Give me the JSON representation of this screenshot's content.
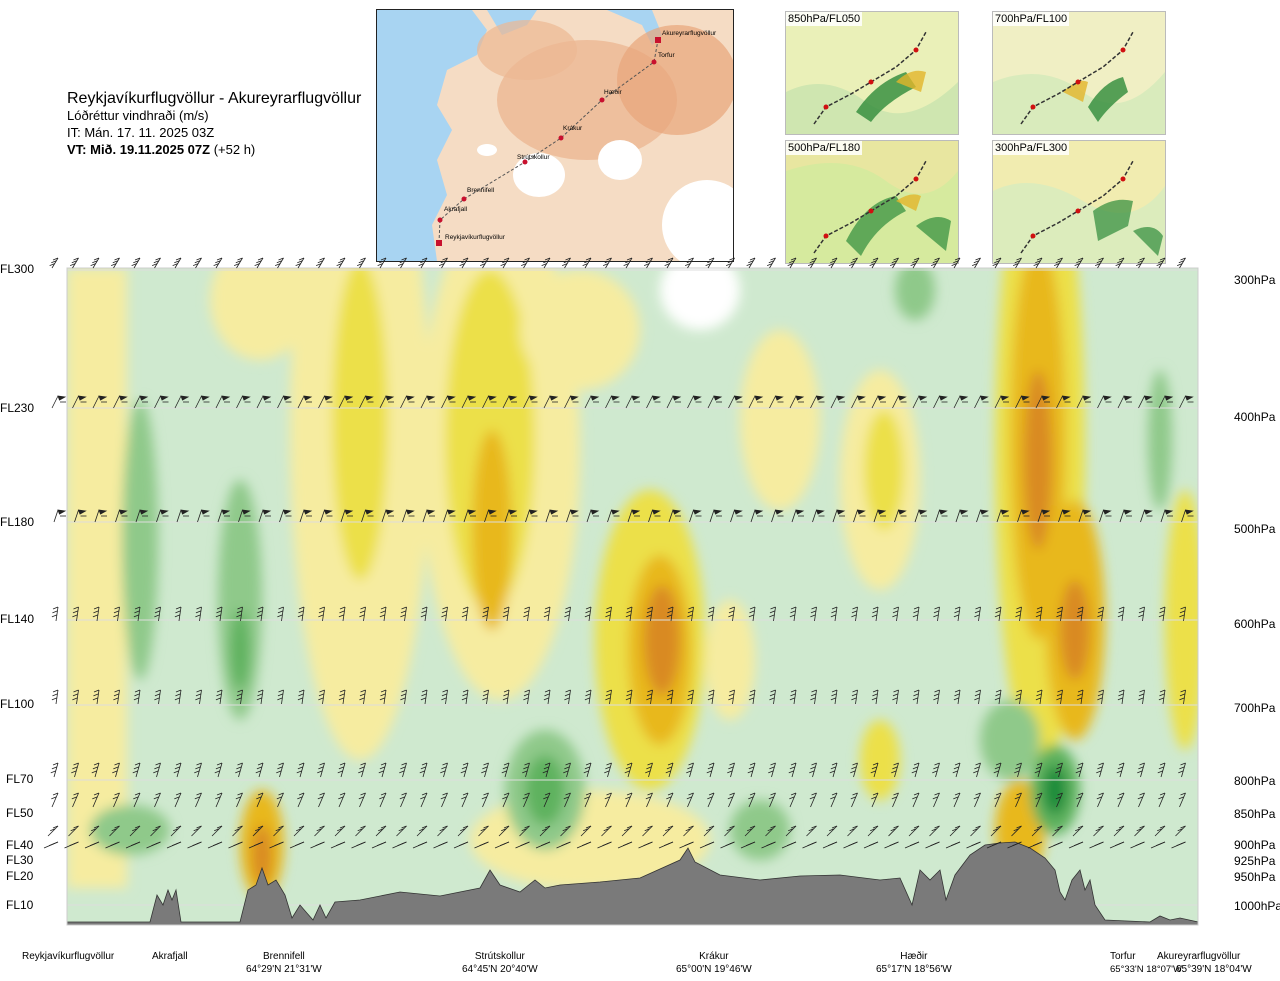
{
  "title": {
    "route": "Reykjavíkurflugvöllur - Akureyrarflugvöllur",
    "variable": "Lóðréttur vindhraði (m/s)",
    "issue_time": "IT: Mán. 17. 11. 2025 03Z",
    "valid_prefix": "VT: Mið. 19.11.2025 07Z",
    "valid_suffix": "(+52 h)"
  },
  "route_map": {
    "points": [
      {
        "name": "Reykjavíkurflugvöllur",
        "kind": "airport"
      },
      {
        "name": "Akrafjall",
        "kind": "waypoint"
      },
      {
        "name": "Brennifell",
        "kind": "waypoint"
      },
      {
        "name": "Strútskollur",
        "kind": "waypoint"
      },
      {
        "name": "Krákur",
        "kind": "waypoint"
      },
      {
        "name": "Hæðir",
        "kind": "waypoint"
      },
      {
        "name": "Torfur",
        "kind": "waypoint"
      },
      {
        "name": "Akureyrarflugvöllur",
        "kind": "airport"
      }
    ],
    "colors": {
      "sea": "#a8d4f2",
      "land_low": "#f5dcc4",
      "land_high": "#e8a57a",
      "glacier": "#ffffff",
      "route": "#c8102e"
    }
  },
  "level_maps": [
    {
      "label": "850hPa/FL050"
    },
    {
      "label": "700hPa/FL100"
    },
    {
      "label": "500hPa/FL180"
    },
    {
      "label": "300hPa/FL300"
    }
  ],
  "flight_levels": [
    "FL300",
    "FL230",
    "FL180",
    "FL140",
    "FL100",
    "FL70",
    "FL50",
    "FL40",
    "FL30",
    "FL20",
    "FL10"
  ],
  "pressure_levels": [
    "300hPa",
    "400hPa",
    "500hPa",
    "600hPa",
    "700hPa",
    "800hPa",
    "850hPa",
    "900hPa",
    "925hPa",
    "950hPa",
    "1000hPa"
  ],
  "locations": [
    {
      "name": "Reykjavíkurflugvöllur",
      "coord": ""
    },
    {
      "name": "Akrafjall",
      "coord": ""
    },
    {
      "name": "Brennifell",
      "coord": "64°29'N 21°31'W"
    },
    {
      "name": "Strútskollur",
      "coord": "64°45'N 20°40'W"
    },
    {
      "name": "Krákur",
      "coord": "65°00'N 19°46'W"
    },
    {
      "name": "Hæðir",
      "coord": "65°17'N 18°56'W"
    },
    {
      "name": "Torfur",
      "coord": "65°33'N 18°07'W"
    },
    {
      "name": "Akureyrarflugvöllur",
      "coord": "65°39'N 18°04'W"
    }
  ],
  "legend_colors": {
    "sink_strong": "#1e8c3a",
    "sink_mid": "#5fb25f",
    "sink_weak": "#8fc98a",
    "sink_faint": "#cfe9cf",
    "neutral": "#ffffff",
    "rise_faint": "#f6eca0",
    "rise_weak": "#ece04a",
    "rise_mid": "#e8b81c",
    "rise_strong": "#d98a22",
    "terrain": "#7a7a7a"
  }
}
